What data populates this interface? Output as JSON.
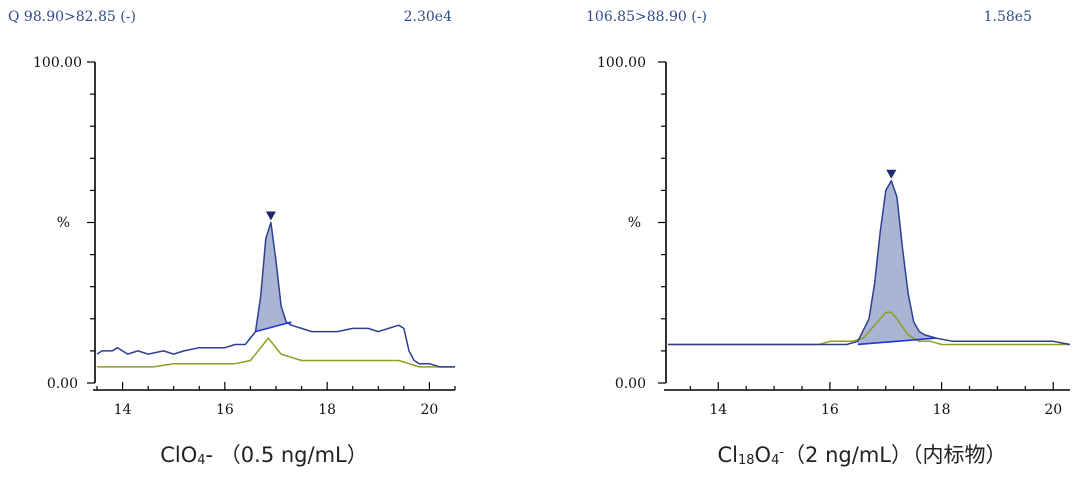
{
  "colors": {
    "header_text": "#2e4a8c",
    "trace_blue": "#2e3f8f",
    "trace_green": "#8aa020",
    "peak_fill": "#8e9cc8",
    "baseline": "#2233dd",
    "marker": "#1b2a6b"
  },
  "chart_data": [
    {
      "type": "line",
      "header_left": "Q 98.90>82.85 (-)",
      "header_right": "2.30e4",
      "y_top_label": "100.00",
      "y_mid_label": "%",
      "y_bottom_label": "0.00",
      "x_ticks": [
        "14",
        "16",
        "18",
        "20"
      ],
      "caption_parts": [
        "ClO",
        "4",
        "- （0.5 ng/mL）"
      ],
      "xlim": [
        13.5,
        20.5
      ],
      "ylim": [
        0,
        100
      ],
      "peak_apex": [
        16.9,
        50
      ],
      "peak_baseline": [
        [
          16.6,
          16
        ],
        [
          17.3,
          19
        ]
      ],
      "series": [
        {
          "x": [
            13.5,
            13.6,
            13.8,
            13.9,
            14.1,
            14.3,
            14.5,
            14.8,
            15.0,
            15.2,
            15.5,
            15.8,
            16.0,
            16.2,
            16.4,
            16.6,
            16.7,
            16.8,
            16.9,
            17.0,
            17.1,
            17.2,
            17.3,
            17.5,
            17.7,
            17.9,
            18.2,
            18.5,
            18.8,
            19.0,
            19.2,
            19.4,
            19.5,
            19.6,
            19.7,
            19.8,
            20.0,
            20.2,
            20.4,
            20.5
          ],
          "y": [
            9,
            10,
            10,
            11,
            9,
            10,
            9,
            10,
            9,
            10,
            11,
            11,
            11,
            12,
            12,
            16,
            27,
            45,
            50,
            38,
            24,
            19,
            18,
            17,
            16,
            16,
            16,
            17,
            17,
            16,
            17,
            18,
            17,
            10,
            7,
            6,
            6,
            5,
            5,
            5
          ]
        },
        {
          "x": [
            13.5,
            13.8,
            14.2,
            14.6,
            15.0,
            15.4,
            15.8,
            16.2,
            16.5,
            16.7,
            16.85,
            16.95,
            17.1,
            17.3,
            17.5,
            18.0,
            18.5,
            19.0,
            19.4,
            19.6,
            19.8,
            20.0,
            20.3,
            20.5
          ],
          "y": [
            5,
            5,
            5,
            5,
            6,
            6,
            6,
            6,
            7,
            11,
            14,
            12,
            9,
            8,
            7,
            7,
            7,
            7,
            7,
            6,
            5,
            5,
            5,
            5
          ]
        }
      ]
    },
    {
      "type": "line",
      "header_left": "106.85>88.90 (-)",
      "header_right": "1.58e5",
      "y_top_label": "100.00",
      "y_mid_label": "%",
      "y_bottom_label": "0.00",
      "x_ticks": [
        "14",
        "16",
        "18",
        "20"
      ],
      "caption_parts": [
        "Cl",
        "18",
        "O",
        "4",
        "-",
        "（2 ng/mL）（内标物）"
      ],
      "xlim": [
        13.1,
        20.3
      ],
      "ylim": [
        0,
        100
      ],
      "peak_apex": [
        17.1,
        63
      ],
      "peak_baseline": [
        [
          16.5,
          12
        ],
        [
          17.9,
          14
        ]
      ],
      "series": [
        {
          "x": [
            13.1,
            13.5,
            14.0,
            14.5,
            15.0,
            15.5,
            16.0,
            16.3,
            16.5,
            16.7,
            16.8,
            16.9,
            17.0,
            17.1,
            17.2,
            17.3,
            17.4,
            17.5,
            17.6,
            17.7,
            17.9,
            18.2,
            18.6,
            19.0,
            19.5,
            20.0,
            20.3
          ],
          "y": [
            12,
            12,
            12,
            12,
            12,
            12,
            12,
            12,
            13,
            20,
            31,
            47,
            60,
            63,
            58,
            42,
            28,
            19,
            16,
            15,
            14,
            13,
            13,
            13,
            13,
            13,
            12
          ]
        },
        {
          "x": [
            13.1,
            14.0,
            15.0,
            15.8,
            16.0,
            16.4,
            16.6,
            16.8,
            17.0,
            17.1,
            17.2,
            17.4,
            17.6,
            17.8,
            18.0,
            18.5,
            19.0,
            19.5,
            20.0,
            20.3
          ],
          "y": [
            12,
            12,
            12,
            12,
            13,
            13,
            14,
            18,
            22,
            22,
            20,
            15,
            13,
            13,
            12,
            12,
            12,
            12,
            12,
            12
          ]
        }
      ]
    }
  ]
}
